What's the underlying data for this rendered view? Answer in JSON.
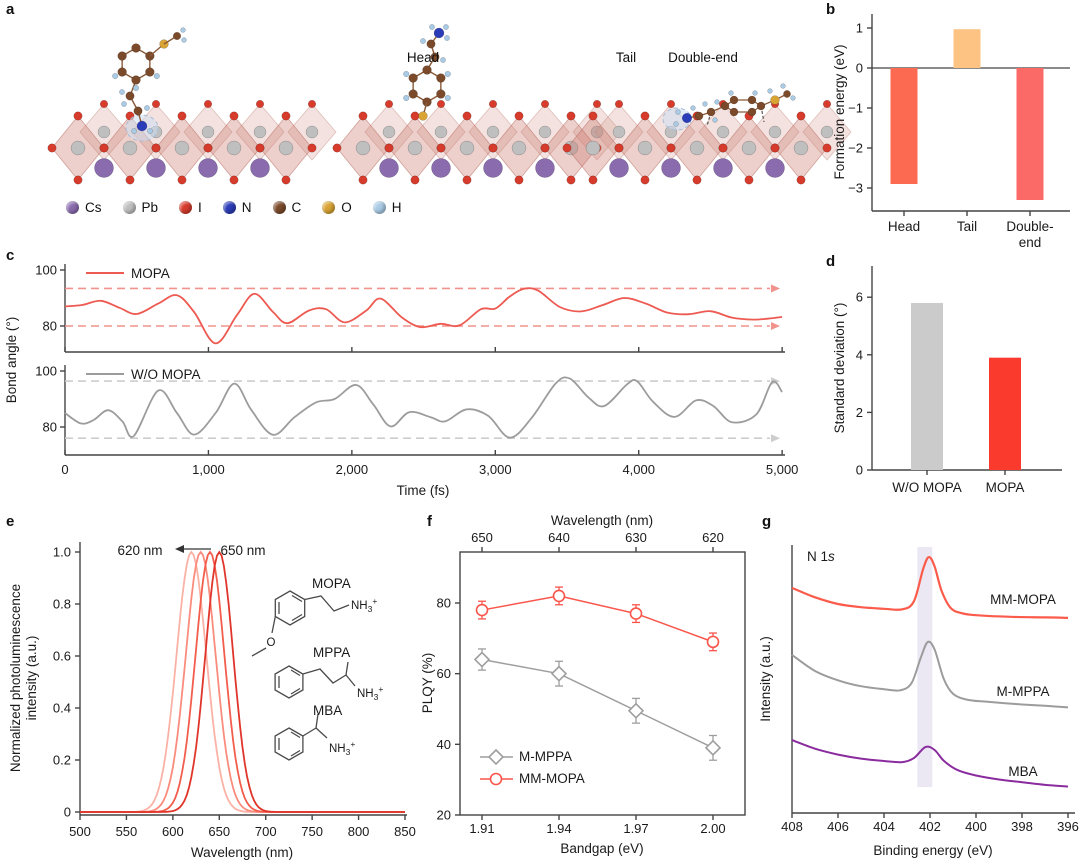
{
  "panels": {
    "a": "a",
    "b": "b",
    "c": "c",
    "d": "d",
    "e": "e",
    "f": "f",
    "g": "g"
  },
  "panel_a": {
    "structures": [
      {
        "name": "Head",
        "variant": "head"
      },
      {
        "name": "Tail",
        "variant": "tail"
      },
      {
        "name": "Double-end",
        "variant": "double"
      }
    ],
    "atom_legend": [
      {
        "symbol": "Cs",
        "color": "#8a6bae"
      },
      {
        "symbol": "Pb",
        "color": "#bfbfbf"
      },
      {
        "symbol": "I",
        "color": "#d63b2c"
      },
      {
        "symbol": "N",
        "color": "#2b3cb8"
      },
      {
        "symbol": "C",
        "color": "#7b4a2b"
      },
      {
        "symbol": "O",
        "color": "#d9a434"
      },
      {
        "symbol": "H",
        "color": "#a9cbe5"
      }
    ]
  },
  "chart_data": [
    {
      "panel": "b",
      "type": "bar",
      "ylabel": "Formation energy (eV)",
      "categories": [
        "Head",
        "Tail",
        "Double-end"
      ],
      "xtick_lines": [
        [
          "Head"
        ],
        [
          "Tail"
        ],
        [
          "Double-",
          "end"
        ]
      ],
      "values": [
        -2.9,
        0.97,
        -3.3
      ],
      "bar_colors": [
        "#fc6a52",
        "#fcc383",
        "#fb6a66"
      ],
      "yticks": [
        1,
        0,
        -1,
        -2,
        -3
      ],
      "ylim": [
        -3.6,
        1.35
      ]
    },
    {
      "panel": "c",
      "type": "line",
      "xlabel": "Time (fs)",
      "ylabel": "Bond angle (°)",
      "xlim": [
        0,
        5000
      ],
      "xticks": [
        0,
        1000,
        2000,
        3000,
        4000,
        5000
      ],
      "xtick_labels": [
        "0",
        "1,000",
        "2,000",
        "3,000",
        "4,000",
        "5,000"
      ],
      "subplots": [
        {
          "name": "MOPA",
          "color": "#ed5a52",
          "dash_color": "#f2928c",
          "yticks": [
            100,
            80
          ],
          "dashed_lines": [
            93.4,
            80
          ],
          "points": [
            [
              0,
              87
            ],
            [
              120,
              87.5
            ],
            [
              250,
              89
            ],
            [
              380,
              86.5
            ],
            [
              500,
              84.3
            ],
            [
              650,
              88
            ],
            [
              780,
              91
            ],
            [
              900,
              85
            ],
            [
              1050,
              73.8
            ],
            [
              1200,
              84
            ],
            [
              1320,
              91.5
            ],
            [
              1450,
              85
            ],
            [
              1550,
              81
            ],
            [
              1700,
              85.5
            ],
            [
              1820,
              86
            ],
            [
              1950,
              81.3
            ],
            [
              2100,
              85.5
            ],
            [
              2200,
              89.8
            ],
            [
              2350,
              83
            ],
            [
              2480,
              79.6
            ],
            [
              2620,
              80.8
            ],
            [
              2750,
              80.2
            ],
            [
              2900,
              86
            ],
            [
              3000,
              86.2
            ],
            [
              3100,
              90.5
            ],
            [
              3200,
              93.3
            ],
            [
              3300,
              92.6
            ],
            [
              3450,
              86.8
            ],
            [
              3600,
              85.2
            ],
            [
              3750,
              87.5
            ],
            [
              3900,
              90
            ],
            [
              4050,
              88
            ],
            [
              4200,
              84.8
            ],
            [
              4350,
              84.2
            ],
            [
              4500,
              85.3
            ],
            [
              4650,
              83
            ],
            [
              4800,
              82.3
            ],
            [
              4900,
              82.6
            ],
            [
              5000,
              83.2
            ]
          ]
        },
        {
          "name": "W/O MOPA",
          "color": "#9c9c9c",
          "dash_color": "#cdcdcd",
          "yticks": [
            100,
            80
          ],
          "dashed_lines": [
            96.4,
            76
          ],
          "points": [
            [
              0,
              85
            ],
            [
              110,
              81.3
            ],
            [
              200,
              82.5
            ],
            [
              300,
              86
            ],
            [
              400,
              82
            ],
            [
              480,
              76.8
            ],
            [
              650,
              93
            ],
            [
              780,
              85
            ],
            [
              900,
              77.3
            ],
            [
              1050,
              85
            ],
            [
              1180,
              95.5
            ],
            [
              1300,
              86
            ],
            [
              1450,
              77.2
            ],
            [
              1600,
              83.5
            ],
            [
              1750,
              88.8
            ],
            [
              1880,
              90
            ],
            [
              2030,
              95
            ],
            [
              2150,
              88
            ],
            [
              2270,
              80.2
            ],
            [
              2400,
              85.3
            ],
            [
              2550,
              83.5
            ],
            [
              2650,
              82
            ],
            [
              2800,
              86.3
            ],
            [
              2950,
              84
            ],
            [
              3100,
              76.2
            ],
            [
              3250,
              83
            ],
            [
              3420,
              95.5
            ],
            [
              3520,
              97.3
            ],
            [
              3650,
              90.5
            ],
            [
              3760,
              87.5
            ],
            [
              3920,
              95.3
            ],
            [
              3990,
              96.3
            ],
            [
              4100,
              89
            ],
            [
              4250,
              83.6
            ],
            [
              4400,
              89.5
            ],
            [
              4520,
              87.5
            ],
            [
              4650,
              81.7
            ],
            [
              4820,
              84.5
            ],
            [
              4930,
              96
            ],
            [
              5000,
              92.5
            ]
          ]
        }
      ]
    },
    {
      "panel": "d",
      "type": "bar",
      "ylabel": "Standard deviation (°)",
      "categories": [
        "W/O MOPA",
        "MOPA"
      ],
      "xtick_lines": [
        [
          "W/O MOPA"
        ],
        [
          "MOPA"
        ]
      ],
      "values": [
        5.8,
        3.9
      ],
      "bar_colors": [
        "#cbcbcb",
        "#f93a2d"
      ],
      "yticks": [
        0,
        2,
        4,
        6
      ],
      "ylim": [
        0,
        7.2
      ]
    },
    {
      "panel": "e",
      "type": "line",
      "xlabel": "Wavelength (nm)",
      "ylabel_lines": [
        "Normalized photoluminescence",
        "intensity (a.u.)"
      ],
      "xticks": [
        500,
        550,
        600,
        650,
        700,
        750,
        800,
        850
      ],
      "yticks": [
        1,
        0.8,
        0.6,
        0.4,
        0.2,
        0
      ],
      "ytick_labels": [
        "1.0",
        "0.8",
        "0.6",
        "0.4",
        "0.2",
        "0"
      ],
      "annotation": {
        "left": "620 nm",
        "right": "650 nm"
      },
      "peaks": [
        {
          "center": 620,
          "sigma": 16,
          "color": "#fbb2a6"
        },
        {
          "center": 630,
          "sigma": 16,
          "color": "#f98c7d"
        },
        {
          "center": 640,
          "sigma": 15.5,
          "color": "#f25d4c"
        },
        {
          "center": 650,
          "sigma": 15,
          "color": "#e0352a"
        }
      ],
      "molecules": [
        {
          "name": "MOPA",
          "cation": "NH3+",
          "heteroatom": "O"
        },
        {
          "name": "MPPA",
          "cation": "NH3+"
        },
        {
          "name": "MBA",
          "cation": "NH3+"
        }
      ]
    },
    {
      "panel": "f",
      "type": "scatter",
      "xlabel": "Bandgap (eV)",
      "top_xlabel": "Wavelength (nm)",
      "ylabel": "PLQY (%)",
      "x": [
        1.91,
        1.94,
        1.97,
        2.0
      ],
      "xtick_labels": [
        "1.91",
        "1.94",
        "1.97",
        "2.00"
      ],
      "top_xtick_labels": [
        "650",
        "640",
        "630",
        "620"
      ],
      "yticks": [
        20,
        40,
        60,
        80
      ],
      "ylim": [
        20,
        94.5
      ],
      "series": [
        {
          "name": "M-MPPA",
          "color": "#9e9e9e",
          "marker": "diamond",
          "values": [
            64,
            60,
            49.5,
            39
          ],
          "errors": [
            3,
            3.5,
            3.5,
            3.5
          ]
        },
        {
          "name": "MM-MOPA",
          "color": "#f9554b",
          "marker": "circle",
          "values": [
            78,
            82,
            77,
            69
          ],
          "errors": [
            2.5,
            2.5,
            2.5,
            2.5
          ]
        }
      ]
    },
    {
      "panel": "g",
      "type": "line",
      "xlabel": "Binding energy (eV)",
      "ylabel": "Intensity (a.u.)",
      "annotation": {
        "regular": "N 1",
        "italic": "s"
      },
      "xticks": [
        408,
        406,
        404,
        402,
        400,
        398,
        396
      ],
      "xlim": [
        408,
        396
      ],
      "highlight_band": {
        "x_from": 402.55,
        "x_to": 401.9,
        "color": "#e9e6f3"
      },
      "series": [
        {
          "name": "MM-MOPA",
          "color": "#fb5b4b",
          "points": [
            [
              408,
              84
            ],
            [
              407,
              80.5
            ],
            [
              406,
              78
            ],
            [
              405,
              76.8
            ],
            [
              404,
              76.2
            ],
            [
              403.2,
              76
            ],
            [
              402.7,
              79
            ],
            [
              402.3,
              91
            ],
            [
              402.05,
              95.5
            ],
            [
              401.8,
              92
            ],
            [
              401.5,
              83
            ],
            [
              401.1,
              76.5
            ],
            [
              400.6,
              74.5
            ],
            [
              400,
              73.8
            ],
            [
              398.5,
              73.2
            ],
            [
              397,
              73
            ],
            [
              396,
              72.8
            ]
          ]
        },
        {
          "name": "M-MPPA",
          "color": "#9c9c9c",
          "points": [
            [
              408,
              59
            ],
            [
              407,
              53
            ],
            [
              406,
              49.5
            ],
            [
              405,
              47.3
            ],
            [
              404,
              46.2
            ],
            [
              403.3,
              45.8
            ],
            [
              402.8,
              48.5
            ],
            [
              402.4,
              58
            ],
            [
              402.1,
              63.8
            ],
            [
              401.8,
              61
            ],
            [
              401.4,
              50
            ],
            [
              401,
              44.5
            ],
            [
              400.4,
              42.3
            ],
            [
              399.5,
              41.5
            ],
            [
              398,
              40.5
            ],
            [
              397,
              40
            ],
            [
              396,
              39.4
            ]
          ]
        },
        {
          "name": "MBA",
          "color": "#8a2b9e",
          "points": [
            [
              408,
              27.2
            ],
            [
              407,
              24
            ],
            [
              406,
              21.8
            ],
            [
              405,
              20.3
            ],
            [
              404,
              19.4
            ],
            [
              403.2,
              19
            ],
            [
              402.7,
              20.5
            ],
            [
              402.2,
              24.6
            ],
            [
              401.8,
              23.5
            ],
            [
              401.4,
              19.5
            ],
            [
              400.8,
              16
            ],
            [
              400,
              14
            ],
            [
              399,
              12.5
            ],
            [
              398,
              11.5
            ],
            [
              397,
              10.5
            ],
            [
              396,
              9.9
            ]
          ]
        }
      ]
    }
  ]
}
